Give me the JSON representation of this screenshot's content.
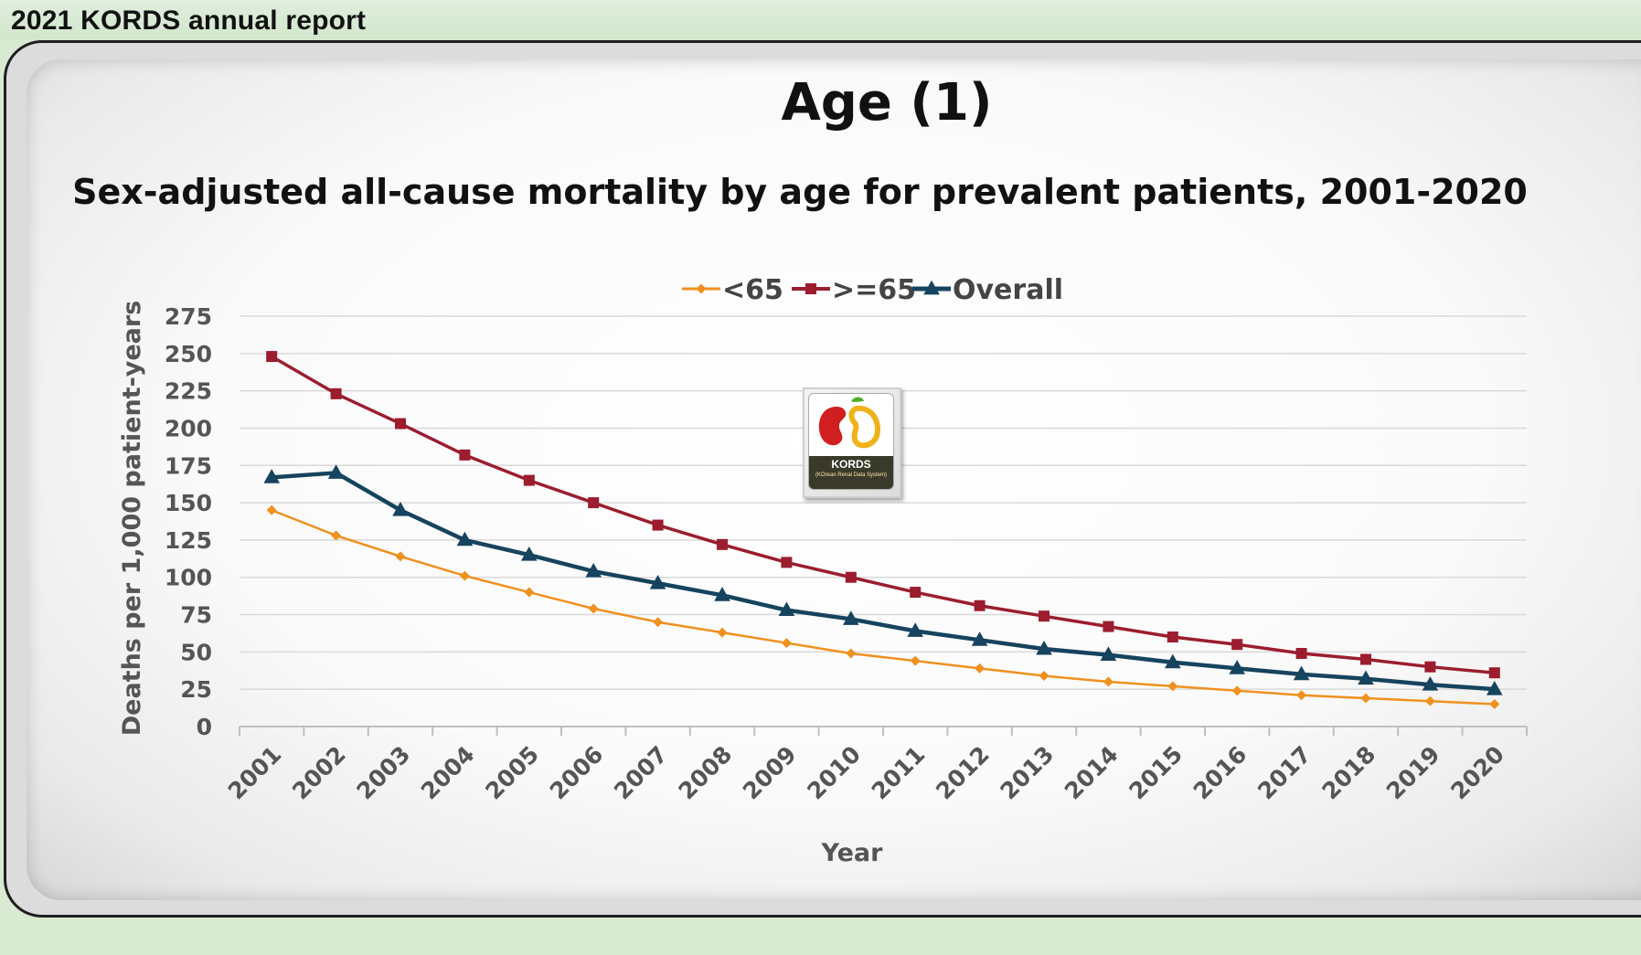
{
  "header": {
    "title": "2021 KORDS annual report"
  },
  "slide": {
    "heading": "Age (1)",
    "logo": {
      "name": "KORDS",
      "subtitle": "(KOrean Renal Data System)"
    }
  },
  "chart_data": {
    "type": "line",
    "title": "Sex-adjusted all-cause mortality by age for prevalent patients, 2001-2020",
    "xlabel": "Year",
    "ylabel": "Deaths per 1,000 patient-years",
    "ylim": [
      0,
      275
    ],
    "yticks": [
      "0",
      "25",
      "50",
      "75",
      "100",
      "125",
      "150",
      "175",
      "200",
      "225",
      "250",
      "275"
    ],
    "grid": true,
    "legend_position": "top-center",
    "categories": [
      "2001",
      "2002",
      "2003",
      "2004",
      "2005",
      "2006",
      "2007",
      "2008",
      "2009",
      "2010",
      "2011",
      "2012",
      "2013",
      "2014",
      "2015",
      "2016",
      "2017",
      "2018",
      "2019",
      "2020"
    ],
    "series": [
      {
        "name": "<65",
        "color": "#f0901e",
        "marker": "diamond",
        "values": [
          145,
          128,
          114,
          101,
          90,
          79,
          70,
          63,
          56,
          49,
          44,
          39,
          34,
          30,
          27,
          24,
          21,
          19,
          17,
          15
        ]
      },
      {
        "name": ">=65",
        "color": "#9b1d2e",
        "marker": "square",
        "values": [
          248,
          223,
          203,
          182,
          165,
          150,
          135,
          122,
          110,
          100,
          90,
          81,
          74,
          67,
          60,
          55,
          49,
          45,
          40,
          36
        ]
      },
      {
        "name": "Overall",
        "color": "#16435e",
        "marker": "triangle",
        "values": [
          167,
          170,
          145,
          125,
          115,
          104,
          96,
          88,
          78,
          72,
          64,
          58,
          52,
          48,
          43,
          39,
          35,
          32,
          28,
          25
        ]
      }
    ]
  }
}
